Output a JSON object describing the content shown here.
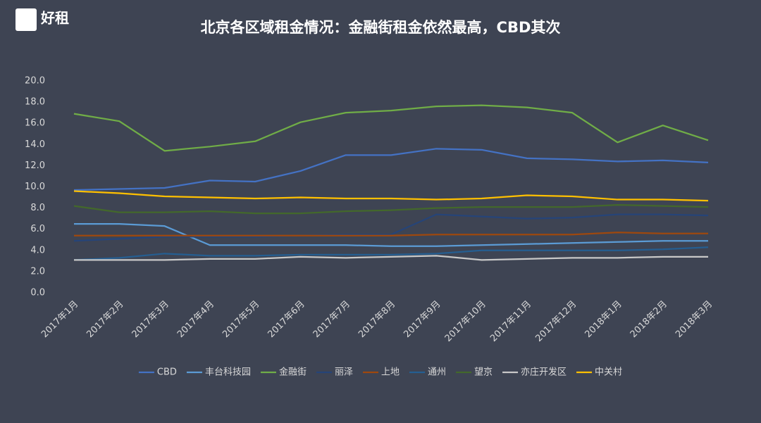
{
  "logo": "好租",
  "chart_data": {
    "type": "line",
    "title": "北京各区域租金情况：金融街租金依然最高，CBD其次",
    "categories": [
      "2017年1月",
      "2017年2月",
      "2017年3月",
      "2017年4月",
      "2017年5月",
      "2017年6月",
      "2017年7月",
      "2017年8月",
      "2017年9月",
      "2017年10月",
      "2017年11月",
      "2017年12月",
      "2018年1月",
      "2018年2月",
      "2018年3月"
    ],
    "ylim": [
      0,
      20
    ],
    "yticks": [
      {
        "value": 0,
        "label": "0.0"
      },
      {
        "value": 2,
        "label": "2.0"
      },
      {
        "value": 4,
        "label": "4.0"
      },
      {
        "value": 6,
        "label": "6.0"
      },
      {
        "value": 8,
        "label": "8.0"
      },
      {
        "value": 10,
        "label": "10.0"
      },
      {
        "value": 12,
        "label": "12.0"
      },
      {
        "value": 14,
        "label": "14.0"
      },
      {
        "value": 16,
        "label": "16.0"
      },
      {
        "value": 18,
        "label": "18.0"
      },
      {
        "value": 20,
        "label": "20.0"
      }
    ],
    "grid": false,
    "legend": "bottom",
    "series": [
      {
        "name": "CBD",
        "color": "#4472c4",
        "values": [
          9.7,
          9.8,
          9.9,
          10.6,
          10.5,
          11.5,
          13.0,
          13.0,
          13.6,
          13.5,
          12.7,
          12.6,
          12.4,
          12.5,
          12.3
        ]
      },
      {
        "name": "丰台科技园",
        "color": "#5b9bd5",
        "values": [
          6.5,
          6.5,
          6.3,
          4.5,
          4.5,
          4.5,
          4.5,
          4.4,
          4.4,
          4.5,
          4.6,
          4.7,
          4.8,
          4.9,
          4.9
        ]
      },
      {
        "name": "金融街",
        "color": "#70ad47",
        "values": [
          16.9,
          16.2,
          13.4,
          13.8,
          14.3,
          16.1,
          17.0,
          17.2,
          17.6,
          17.7,
          17.5,
          17.0,
          14.2,
          15.8,
          14.4
        ]
      },
      {
        "name": "丽泽",
        "color": "#264478",
        "values": [
          4.9,
          5.1,
          5.3,
          5.3,
          5.3,
          5.4,
          5.5,
          5.5,
          7.4,
          7.2,
          7.0,
          7.1,
          7.4,
          7.4,
          7.3
        ]
      },
      {
        "name": "上地",
        "color": "#9e480e",
        "values": [
          5.4,
          5.4,
          5.4,
          5.4,
          5.4,
          5.4,
          5.4,
          5.4,
          5.5,
          5.5,
          5.5,
          5.5,
          5.7,
          5.6,
          5.6
        ]
      },
      {
        "name": "通州",
        "color": "#255e91",
        "values": [
          3.1,
          3.3,
          3.7,
          3.5,
          3.5,
          3.6,
          3.6,
          3.6,
          3.7,
          4.0,
          4.0,
          4.0,
          4.0,
          4.1,
          4.3
        ]
      },
      {
        "name": "望京",
        "color": "#43682b",
        "values": [
          8.2,
          7.6,
          7.6,
          7.7,
          7.5,
          7.5,
          7.7,
          7.8,
          8.0,
          8.1,
          8.1,
          8.1,
          8.3,
          8.2,
          8.1
        ]
      },
      {
        "name": "亦庄开发区",
        "color": "#c8c8c8",
        "values": [
          3.1,
          3.1,
          3.1,
          3.2,
          3.2,
          3.4,
          3.3,
          3.4,
          3.5,
          3.1,
          3.2,
          3.3,
          3.3,
          3.4,
          3.4
        ]
      },
      {
        "name": "中关村",
        "color": "#ffc000",
        "values": [
          9.6,
          9.4,
          9.1,
          9.0,
          8.9,
          9.0,
          8.9,
          8.9,
          8.8,
          8.9,
          9.2,
          9.1,
          8.8,
          8.8,
          8.7
        ]
      }
    ]
  }
}
